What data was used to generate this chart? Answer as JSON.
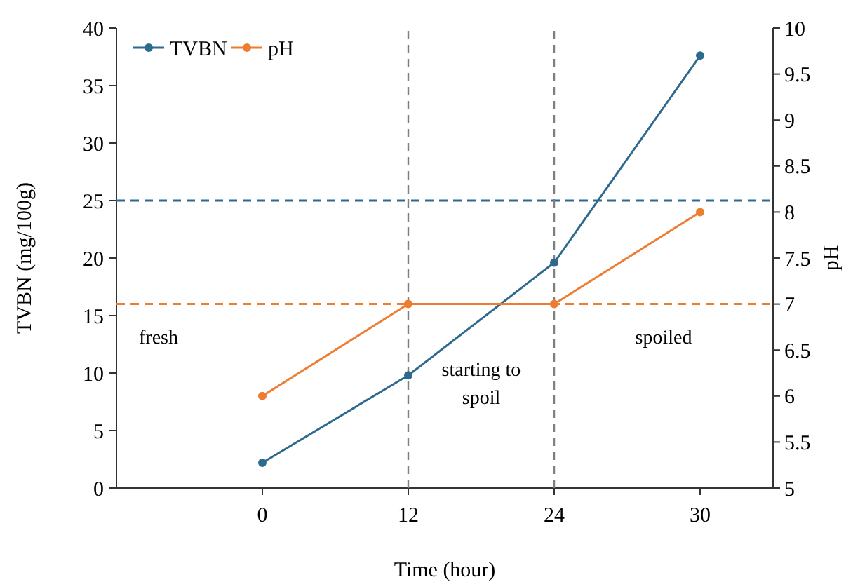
{
  "chart_data": {
    "type": "line",
    "xlabel": "Time (hour)",
    "ylabel": "TVBN (mg/100g)",
    "y2label": "pH",
    "categories": [
      "0",
      "12",
      "24",
      "30"
    ],
    "series": [
      {
        "name": "TVBN",
        "color": "#2e6a8e",
        "values": [
          2.2,
          9.8,
          19.6,
          37.6
        ]
      },
      {
        "name": "pH",
        "color": "#ed7d31",
        "values": [
          6.0,
          7.0,
          7.0,
          8.0
        ],
        "axis": "y2"
      }
    ],
    "ylim": [
      0,
      40
    ],
    "yticks": [
      0,
      5,
      10,
      15,
      20,
      25,
      30,
      35,
      40
    ],
    "y2lim": [
      5,
      10
    ],
    "y2ticks": [
      5,
      5.5,
      6,
      6.5,
      7,
      7.5,
      8,
      8.5,
      9,
      9.5,
      10
    ],
    "ref_lines": [
      {
        "axis": "y",
        "value": 25,
        "color": "#2e6a8e",
        "line_style": "dashed"
      },
      {
        "axis": "y2",
        "value": 7,
        "color": "#ed7d31",
        "line_style": "dashed"
      },
      {
        "axis": "x",
        "value": "12",
        "color": "#7f7f7f",
        "line_style": "dashed"
      },
      {
        "axis": "x",
        "value": "24",
        "color": "#7f7f7f",
        "line_style": "dashed"
      }
    ],
    "annotations": [
      "fresh",
      "starting to spoil",
      "spoiled"
    ],
    "legend": "top left",
    "marker": "circle",
    "line_style": "solid",
    "grid": false
  }
}
